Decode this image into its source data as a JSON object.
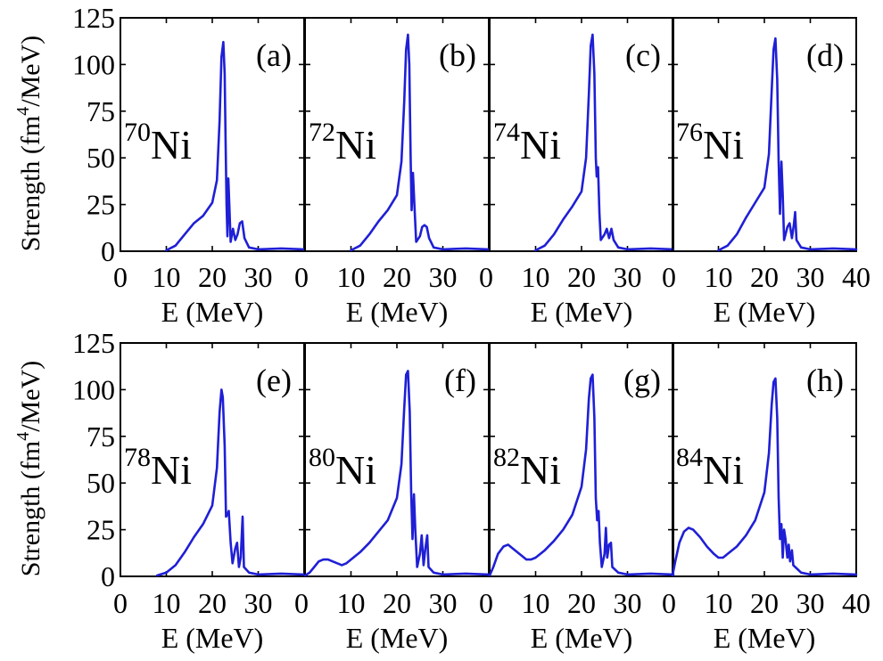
{
  "chart_data": {
    "type": "line",
    "layout": "2 rows x 4 panels, shared y-axis per row",
    "line_color": "#1f1fd6",
    "x_range": [
      0,
      40
    ],
    "y_range": [
      0,
      125
    ],
    "x_ticks": [
      "0",
      "10",
      "20",
      "30",
      "40"
    ],
    "y_ticks": [
      "0",
      "25",
      "50",
      "75",
      "100",
      "125"
    ],
    "xlabel": "E (MeV)",
    "ylabel": "Strength (fm^4/MeV)",
    "rows": [
      {
        "ylabel_main": "Strength (fm",
        "ylabel_sup": "4",
        "ylabel_end": "/MeV)"
      },
      {
        "ylabel_main": "Strength (fm",
        "ylabel_sup": "4",
        "ylabel_end": "/MeV)"
      }
    ],
    "panels": [
      {
        "label": "(a)",
        "mass": "70",
        "element": "Ni",
        "series": [
          [
            10,
            0.5
          ],
          [
            12,
            3
          ],
          [
            14,
            9
          ],
          [
            16,
            15
          ],
          [
            18,
            19
          ],
          [
            20,
            26
          ],
          [
            21,
            38
          ],
          [
            21.6,
            70
          ],
          [
            22,
            104
          ],
          [
            22.4,
            112
          ],
          [
            22.7,
            95
          ],
          [
            22.9,
            60
          ],
          [
            23.1,
            25
          ],
          [
            23.3,
            8
          ],
          [
            23.5,
            39
          ],
          [
            23.7,
            25
          ],
          [
            24,
            5
          ],
          [
            24.5,
            12
          ],
          [
            25,
            6
          ],
          [
            25.5,
            9
          ],
          [
            26,
            15
          ],
          [
            26.5,
            16
          ],
          [
            27,
            7
          ],
          [
            28,
            2
          ],
          [
            30,
            1
          ],
          [
            35,
            1.5
          ],
          [
            40,
            1
          ]
        ]
      },
      {
        "label": "(b)",
        "mass": "72",
        "element": "Ni",
        "series": [
          [
            10,
            0.5
          ],
          [
            12,
            3
          ],
          [
            14,
            9
          ],
          [
            16,
            16
          ],
          [
            18,
            22
          ],
          [
            20,
            30
          ],
          [
            21,
            48
          ],
          [
            21.6,
            80
          ],
          [
            22,
            108
          ],
          [
            22.4,
            116
          ],
          [
            22.7,
            100
          ],
          [
            23,
            50
          ],
          [
            23.2,
            22
          ],
          [
            23.5,
            42
          ],
          [
            23.8,
            25
          ],
          [
            24.2,
            5
          ],
          [
            25,
            8
          ],
          [
            25.5,
            13
          ],
          [
            26,
            14
          ],
          [
            26.5,
            13
          ],
          [
            27,
            7
          ],
          [
            28,
            2
          ],
          [
            30,
            1
          ],
          [
            35,
            1.5
          ],
          [
            40,
            1
          ]
        ]
      },
      {
        "label": "(c)",
        "mass": "74",
        "element": "Ni",
        "series": [
          [
            10,
            0.5
          ],
          [
            12,
            3
          ],
          [
            14,
            9
          ],
          [
            16,
            17
          ],
          [
            18,
            24
          ],
          [
            20,
            32
          ],
          [
            21,
            50
          ],
          [
            21.6,
            84
          ],
          [
            22,
            110
          ],
          [
            22.4,
            116
          ],
          [
            22.8,
            95
          ],
          [
            23.1,
            50
          ],
          [
            23.3,
            40
          ],
          [
            23.6,
            45
          ],
          [
            23.9,
            20
          ],
          [
            24.2,
            6
          ],
          [
            25,
            9
          ],
          [
            25.5,
            12
          ],
          [
            26,
            7
          ],
          [
            26.5,
            12
          ],
          [
            27,
            6
          ],
          [
            28,
            2
          ],
          [
            30,
            1
          ],
          [
            35,
            1.5
          ],
          [
            40,
            1
          ]
        ]
      },
      {
        "label": "(d)",
        "mass": "76",
        "element": "Ni",
        "series": [
          [
            10,
            0.5
          ],
          [
            12,
            3
          ],
          [
            14,
            9
          ],
          [
            16,
            18
          ],
          [
            18,
            26
          ],
          [
            20,
            34
          ],
          [
            21,
            52
          ],
          [
            21.6,
            86
          ],
          [
            22,
            108
          ],
          [
            22.4,
            114
          ],
          [
            22.8,
            92
          ],
          [
            23.1,
            48
          ],
          [
            23.4,
            20
          ],
          [
            23.7,
            48
          ],
          [
            24,
            30
          ],
          [
            24.3,
            6
          ],
          [
            25,
            13
          ],
          [
            25.5,
            15
          ],
          [
            26,
            7
          ],
          [
            26.4,
            14
          ],
          [
            26.7,
            21
          ],
          [
            27,
            6
          ],
          [
            28,
            2
          ],
          [
            30,
            1
          ],
          [
            35,
            1.5
          ],
          [
            40,
            1
          ]
        ]
      },
      {
        "label": "(e)",
        "mass": "78",
        "element": "Ni",
        "series": [
          [
            8,
            0.5
          ],
          [
            10,
            2
          ],
          [
            12,
            6
          ],
          [
            14,
            13
          ],
          [
            16,
            21
          ],
          [
            18,
            28
          ],
          [
            20,
            38
          ],
          [
            21,
            58
          ],
          [
            21.6,
            88
          ],
          [
            22,
            100
          ],
          [
            22.3,
            96
          ],
          [
            22.7,
            70
          ],
          [
            23,
            32
          ],
          [
            23.3,
            33
          ],
          [
            23.6,
            35
          ],
          [
            24,
            18
          ],
          [
            24.4,
            7
          ],
          [
            25,
            15
          ],
          [
            25.4,
            18
          ],
          [
            25.8,
            5
          ],
          [
            26.2,
            10
          ],
          [
            26.6,
            32
          ],
          [
            26.9,
            5
          ],
          [
            28,
            2
          ],
          [
            30,
            1
          ],
          [
            35,
            1.5
          ],
          [
            40,
            1
          ]
        ]
      },
      {
        "label": "(f)",
        "mass": "80",
        "element": "Ni",
        "series": [
          [
            0,
            0.5
          ],
          [
            1,
            2
          ],
          [
            2,
            5
          ],
          [
            3,
            8
          ],
          [
            4,
            9
          ],
          [
            5,
            9
          ],
          [
            6,
            8
          ],
          [
            7,
            7
          ],
          [
            8,
            6
          ],
          [
            9,
            7
          ],
          [
            10,
            9
          ],
          [
            12,
            13
          ],
          [
            14,
            18
          ],
          [
            16,
            24
          ],
          [
            18,
            30
          ],
          [
            20,
            42
          ],
          [
            21,
            60
          ],
          [
            21.6,
            90
          ],
          [
            22,
            108
          ],
          [
            22.4,
            110
          ],
          [
            22.8,
            88
          ],
          [
            23.1,
            45
          ],
          [
            23.4,
            20
          ],
          [
            23.7,
            44
          ],
          [
            24,
            25
          ],
          [
            24.4,
            5
          ],
          [
            25,
            12
          ],
          [
            25.4,
            22
          ],
          [
            25.8,
            6
          ],
          [
            26.2,
            15
          ],
          [
            26.6,
            22
          ],
          [
            26.9,
            5
          ],
          [
            28,
            2
          ],
          [
            30,
            1
          ],
          [
            35,
            1.5
          ],
          [
            40,
            1
          ]
        ]
      },
      {
        "label": "(g)",
        "mass": "82",
        "element": "Ni",
        "series": [
          [
            0,
            0.5
          ],
          [
            0.8,
            5
          ],
          [
            1.8,
            12
          ],
          [
            3,
            16
          ],
          [
            4,
            17
          ],
          [
            5,
            15
          ],
          [
            6,
            13
          ],
          [
            7,
            11
          ],
          [
            8,
            9
          ],
          [
            9,
            9
          ],
          [
            10,
            10
          ],
          [
            12,
            14
          ],
          [
            14,
            19
          ],
          [
            16,
            25
          ],
          [
            18,
            33
          ],
          [
            20,
            48
          ],
          [
            21,
            68
          ],
          [
            21.6,
            95
          ],
          [
            22,
            106
          ],
          [
            22.4,
            108
          ],
          [
            22.8,
            85
          ],
          [
            23.1,
            42
          ],
          [
            23.4,
            30
          ],
          [
            23.7,
            35
          ],
          [
            24,
            18
          ],
          [
            24.4,
            5
          ],
          [
            25,
            12
          ],
          [
            25.3,
            26
          ],
          [
            25.6,
            10
          ],
          [
            26,
            17
          ],
          [
            26.4,
            18
          ],
          [
            26.7,
            5
          ],
          [
            28,
            2
          ],
          [
            30,
            1
          ],
          [
            35,
            1.5
          ],
          [
            40,
            1
          ]
        ]
      },
      {
        "label": "(h)",
        "mass": "84",
        "element": "Ni",
        "series": [
          [
            0,
            0.5
          ],
          [
            0.6,
            8
          ],
          [
            1.5,
            18
          ],
          [
            2.5,
            24
          ],
          [
            3.5,
            26
          ],
          [
            4.5,
            25
          ],
          [
            6,
            21
          ],
          [
            7.5,
            16
          ],
          [
            9,
            12
          ],
          [
            10,
            10
          ],
          [
            11,
            10
          ],
          [
            12,
            12
          ],
          [
            14,
            16
          ],
          [
            16,
            22
          ],
          [
            18,
            30
          ],
          [
            20,
            45
          ],
          [
            21,
            66
          ],
          [
            21.6,
            92
          ],
          [
            22,
            104
          ],
          [
            22.4,
            106
          ],
          [
            22.8,
            85
          ],
          [
            23.1,
            42
          ],
          [
            23.4,
            20
          ],
          [
            23.7,
            28
          ],
          [
            24,
            10
          ],
          [
            24.3,
            25
          ],
          [
            24.6,
            20
          ],
          [
            25,
            10
          ],
          [
            25.3,
            17
          ],
          [
            25.6,
            8
          ],
          [
            26,
            14
          ],
          [
            26.3,
            6
          ],
          [
            28,
            2
          ],
          [
            30,
            1
          ],
          [
            35,
            1.5
          ],
          [
            40,
            1
          ]
        ]
      }
    ]
  }
}
